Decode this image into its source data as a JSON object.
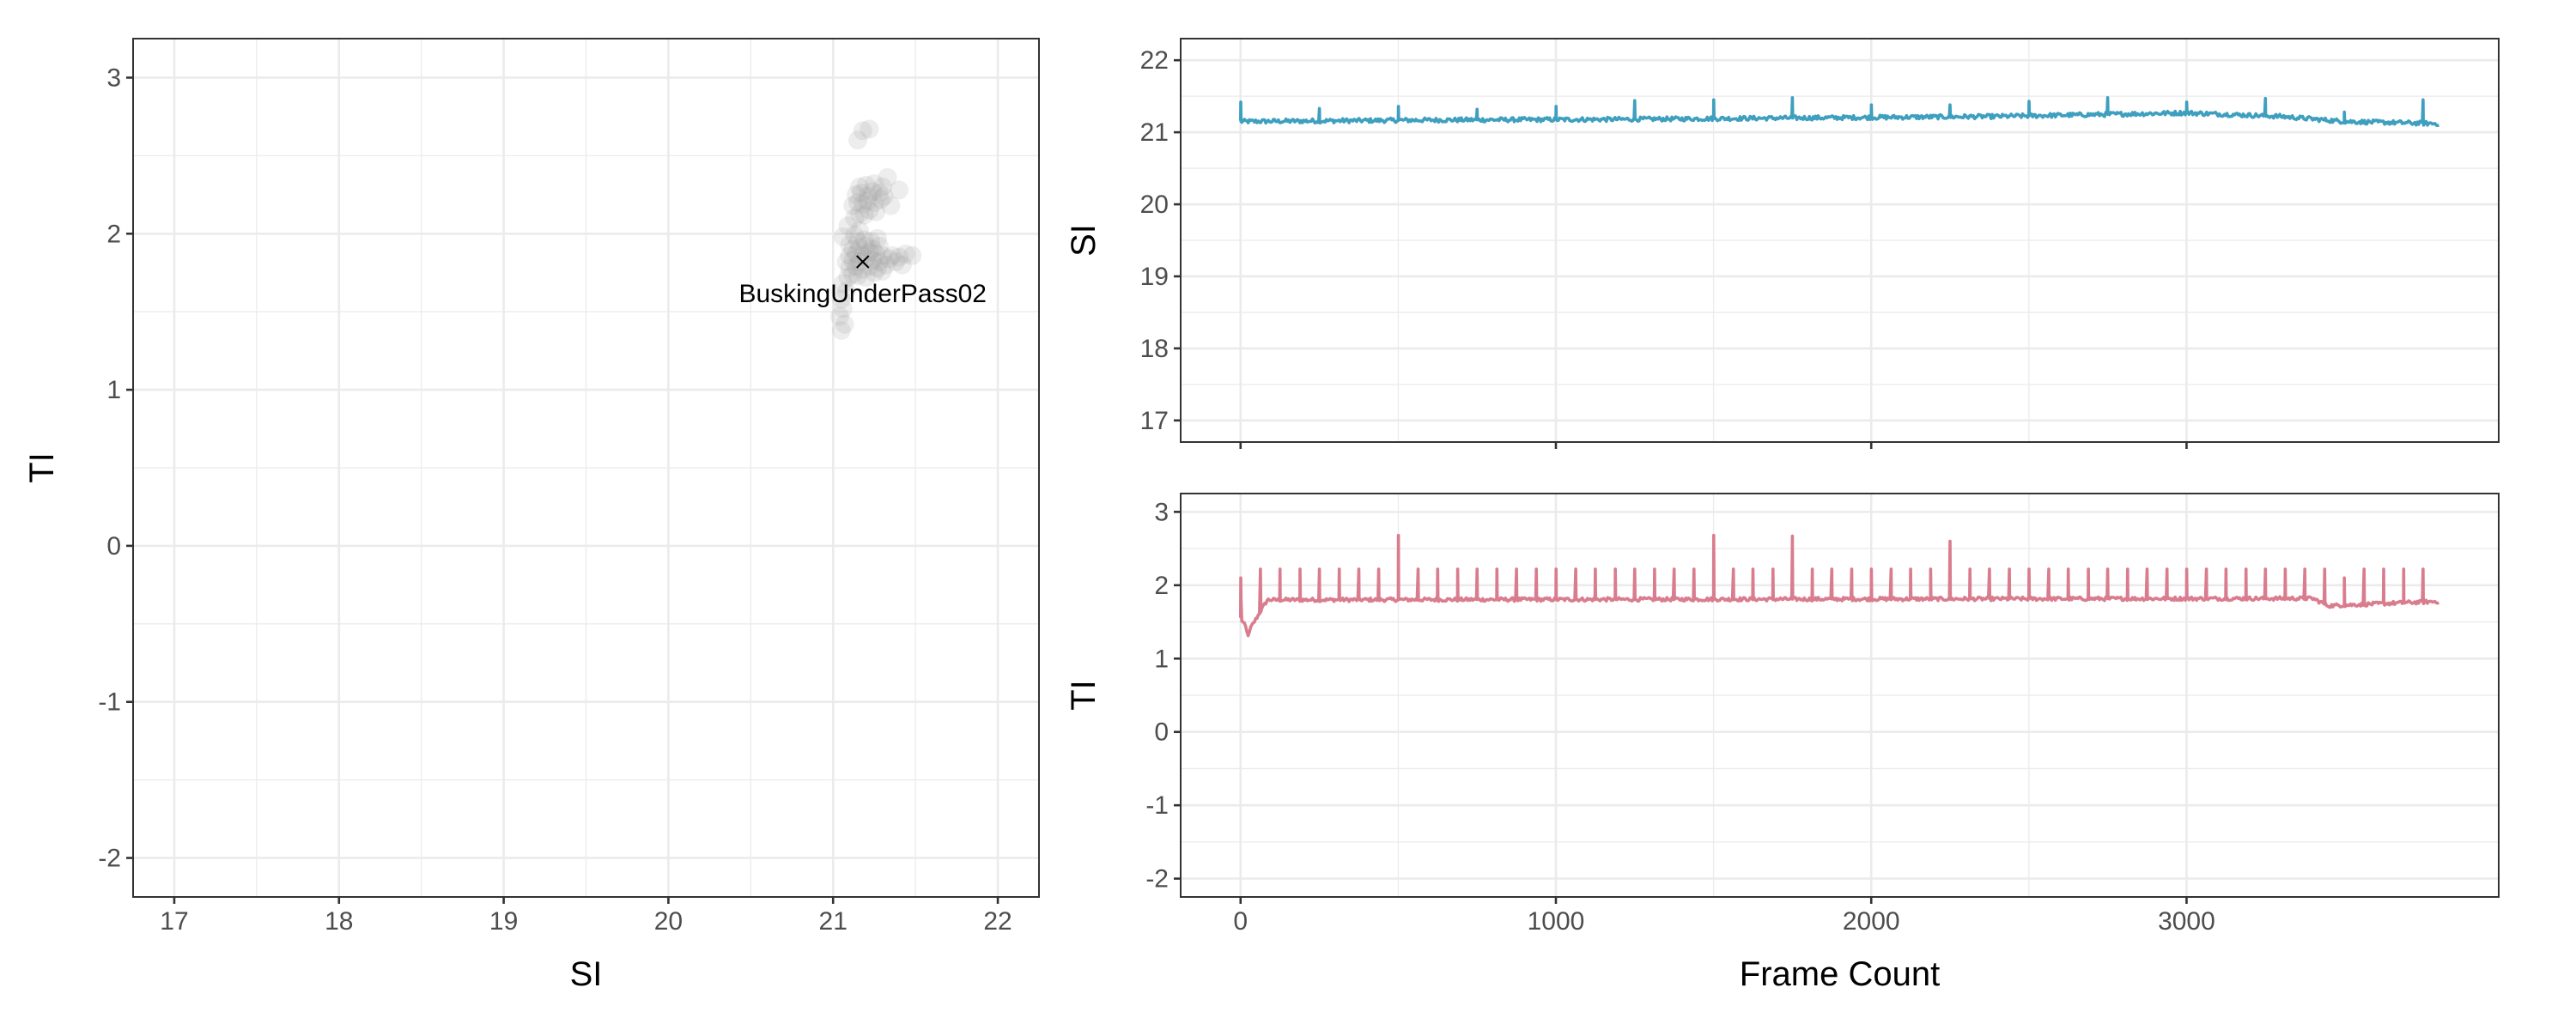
{
  "chart_data": [
    {
      "type": "scatter",
      "xlabel": "SI",
      "ylabel": "TI",
      "xlim": [
        16.75,
        22.25
      ],
      "ylim": [
        -2.25,
        3.25
      ],
      "x_ticks": [
        17,
        18,
        19,
        20,
        21,
        22
      ],
      "y_ticks": [
        -2,
        -1,
        0,
        1,
        2,
        3
      ],
      "grid": true,
      "point_color": "#999999",
      "point_opacity": 0.18,
      "points": [
        [
          21.05,
          1.38
        ],
        [
          21.07,
          1.42
        ],
        [
          21.04,
          1.47
        ],
        [
          21.06,
          1.52
        ],
        [
          21.05,
          1.58
        ],
        [
          21.08,
          1.63
        ],
        [
          21.06,
          1.68
        ],
        [
          21.09,
          1.72
        ],
        [
          21.12,
          1.74
        ],
        [
          21.15,
          1.73
        ],
        [
          21.2,
          1.72
        ],
        [
          21.25,
          1.75
        ],
        [
          21.3,
          1.76
        ],
        [
          21.1,
          1.78
        ],
        [
          21.14,
          1.79
        ],
        [
          21.18,
          1.77
        ],
        [
          21.22,
          1.79
        ],
        [
          21.27,
          1.78
        ],
        [
          21.32,
          1.8
        ],
        [
          21.08,
          1.82
        ],
        [
          21.12,
          1.83
        ],
        [
          21.16,
          1.82
        ],
        [
          21.2,
          1.84
        ],
        [
          21.24,
          1.83
        ],
        [
          21.28,
          1.82
        ],
        [
          21.34,
          1.84
        ],
        [
          21.1,
          1.86
        ],
        [
          21.14,
          1.87
        ],
        [
          21.18,
          1.86
        ],
        [
          21.22,
          1.88
        ],
        [
          21.26,
          1.87
        ],
        [
          21.3,
          1.86
        ],
        [
          21.36,
          1.86
        ],
        [
          21.4,
          1.85
        ],
        [
          21.44,
          1.87
        ],
        [
          21.48,
          1.86
        ],
        [
          21.38,
          1.82
        ],
        [
          21.42,
          1.8
        ],
        [
          21.12,
          1.9
        ],
        [
          21.16,
          1.91
        ],
        [
          21.2,
          1.92
        ],
        [
          21.24,
          1.9
        ],
        [
          21.28,
          1.92
        ],
        [
          21.15,
          1.95
        ],
        [
          21.19,
          1.96
        ],
        [
          21.23,
          1.95
        ],
        [
          21.27,
          1.97
        ],
        [
          21.1,
          1.93
        ],
        [
          21.13,
          1.99
        ],
        [
          21.16,
          2.02
        ],
        [
          21.13,
          2.1
        ],
        [
          21.16,
          2.13
        ],
        [
          21.19,
          2.12
        ],
        [
          21.22,
          2.15
        ],
        [
          21.26,
          2.14
        ],
        [
          21.12,
          2.18
        ],
        [
          21.15,
          2.2
        ],
        [
          21.18,
          2.19
        ],
        [
          21.21,
          2.21
        ],
        [
          21.25,
          2.2
        ],
        [
          21.29,
          2.22
        ],
        [
          21.14,
          2.25
        ],
        [
          21.17,
          2.26
        ],
        [
          21.21,
          2.24
        ],
        [
          21.24,
          2.27
        ],
        [
          21.28,
          2.26
        ],
        [
          21.31,
          2.24
        ],
        [
          21.16,
          2.3
        ],
        [
          21.2,
          2.31
        ],
        [
          21.25,
          2.32
        ],
        [
          21.3,
          2.3
        ],
        [
          21.35,
          2.18
        ],
        [
          21.4,
          2.28
        ],
        [
          21.33,
          2.36
        ],
        [
          21.18,
          2.66
        ],
        [
          21.22,
          2.67
        ],
        [
          21.15,
          2.6
        ],
        [
          21.06,
          1.98
        ],
        [
          21.09,
          2.05
        ]
      ],
      "centroid": {
        "x": 21.18,
        "y": 1.82,
        "marker": "x"
      },
      "annotations": [
        {
          "text": "BuskingUnderPass02",
          "x": 21.18,
          "y": 1.82
        }
      ]
    },
    {
      "type": "line",
      "xlabel": "",
      "ylabel": "SI",
      "xlim": [
        -190,
        3990
      ],
      "ylim": [
        16.7,
        22.3
      ],
      "x_ticks": [
        0,
        1000,
        2000,
        3000
      ],
      "y_ticks": [
        17,
        18,
        19,
        20,
        21,
        22
      ],
      "show_x_tick_labels": false,
      "grid": true,
      "line_color": "#3e9fbf",
      "frames": 3800,
      "baseline": [
        [
          0,
          21.15
        ],
        [
          600,
          21.17
        ],
        [
          1200,
          21.18
        ],
        [
          1800,
          21.2
        ],
        [
          2400,
          21.22
        ],
        [
          3000,
          21.27
        ],
        [
          3300,
          21.22
        ],
        [
          3500,
          21.15
        ],
        [
          3800,
          21.12
        ]
      ],
      "spikes": [
        [
          0,
          21.42
        ],
        [
          250,
          21.33
        ],
        [
          500,
          21.36
        ],
        [
          750,
          21.32
        ],
        [
          1000,
          21.36
        ],
        [
          1250,
          21.44
        ],
        [
          1500,
          21.45
        ],
        [
          1750,
          21.48
        ],
        [
          2000,
          21.38
        ],
        [
          2250,
          21.38
        ],
        [
          2500,
          21.43
        ],
        [
          2750,
          21.48
        ],
        [
          3000,
          21.42
        ],
        [
          3250,
          21.47
        ],
        [
          3500,
          21.28
        ],
        [
          3750,
          21.45
        ]
      ],
      "noise": 0.03
    },
    {
      "type": "line",
      "xlabel": "Frame Count",
      "ylabel": "TI",
      "xlim": [
        -190,
        3990
      ],
      "ylim": [
        -2.25,
        3.25
      ],
      "x_ticks": [
        0,
        1000,
        2000,
        3000
      ],
      "y_ticks": [
        -2,
        -1,
        0,
        1,
        2,
        3
      ],
      "show_x_tick_labels": true,
      "grid": true,
      "line_color": "#d97c8e",
      "frames": 3800,
      "baseline": [
        [
          0,
          1.8
        ],
        [
          3400,
          1.82
        ],
        [
          3450,
          1.72
        ],
        [
          3800,
          1.78
        ]
      ],
      "dip": {
        "x": 25,
        "y": 1.32
      },
      "spike_spacing": 62.5,
      "spike_height": 2.22,
      "spikes": [
        [
          0,
          2.1
        ],
        [
          500,
          2.68
        ],
        [
          1500,
          2.68
        ],
        [
          1750,
          2.67
        ],
        [
          2250,
          2.6
        ],
        [
          3500,
          2.1
        ]
      ],
      "noise": 0.025
    }
  ]
}
